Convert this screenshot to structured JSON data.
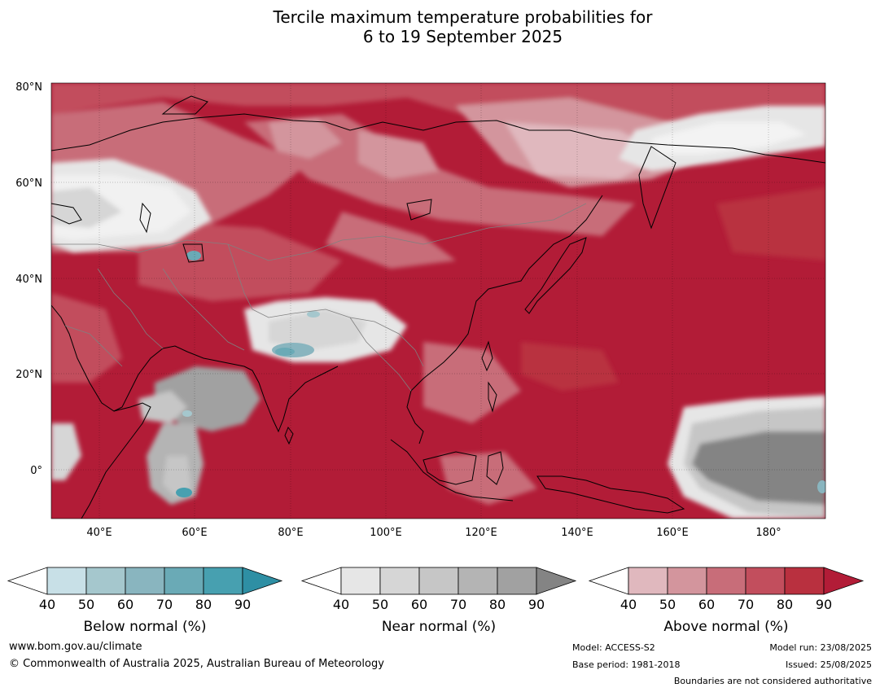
{
  "title": {
    "line1": "Tercile maximum temperature probabilities for",
    "line2": "6 to 19 September 2025"
  },
  "map": {
    "lat_labels": [
      "80°N",
      "60°N",
      "40°N",
      "20°N",
      "0°"
    ],
    "lon_labels": [
      "40°E",
      "60°E",
      "80°E",
      "100°E",
      "120°E",
      "140°E",
      "160°E",
      "180°"
    ],
    "background_color": "#b21c37"
  },
  "colorbars": [
    {
      "title": "Below normal (%)",
      "ticks": [
        "40",
        "50",
        "60",
        "70",
        "80",
        "90"
      ],
      "colors": [
        "#ffffff",
        "#c8e0e7",
        "#a5c7cd",
        "#89b5bf",
        "#6aaab6",
        "#47a0b0",
        "#2e8fa4"
      ]
    },
    {
      "title": "Near normal (%)",
      "ticks": [
        "40",
        "50",
        "60",
        "70",
        "80",
        "90"
      ],
      "colors": [
        "#ffffff",
        "#e6e6e6",
        "#d6d6d6",
        "#c6c6c6",
        "#b4b4b4",
        "#a1a1a1",
        "#848484"
      ]
    },
    {
      "title": "Above normal (%)",
      "ticks": [
        "40",
        "50",
        "60",
        "70",
        "80",
        "90"
      ],
      "colors": [
        "#ffffff",
        "#e0b8be",
        "#d3959d",
        "#c86d79",
        "#c24e5d",
        "#b9303f",
        "#b21c37"
      ]
    }
  ],
  "footer": {
    "website": "www.bom.gov.au/climate",
    "copyright": "© Commonwealth of Australia 2025, Australian Bureau of Meteorology",
    "model": "Model: ACCESS-S2",
    "base_period": "Base period: 1981-2018",
    "model_run": "Model run: 23/08/2025",
    "issued": "Issued: 25/08/2025",
    "disclaimer": "Boundaries are not considered authoritative"
  }
}
